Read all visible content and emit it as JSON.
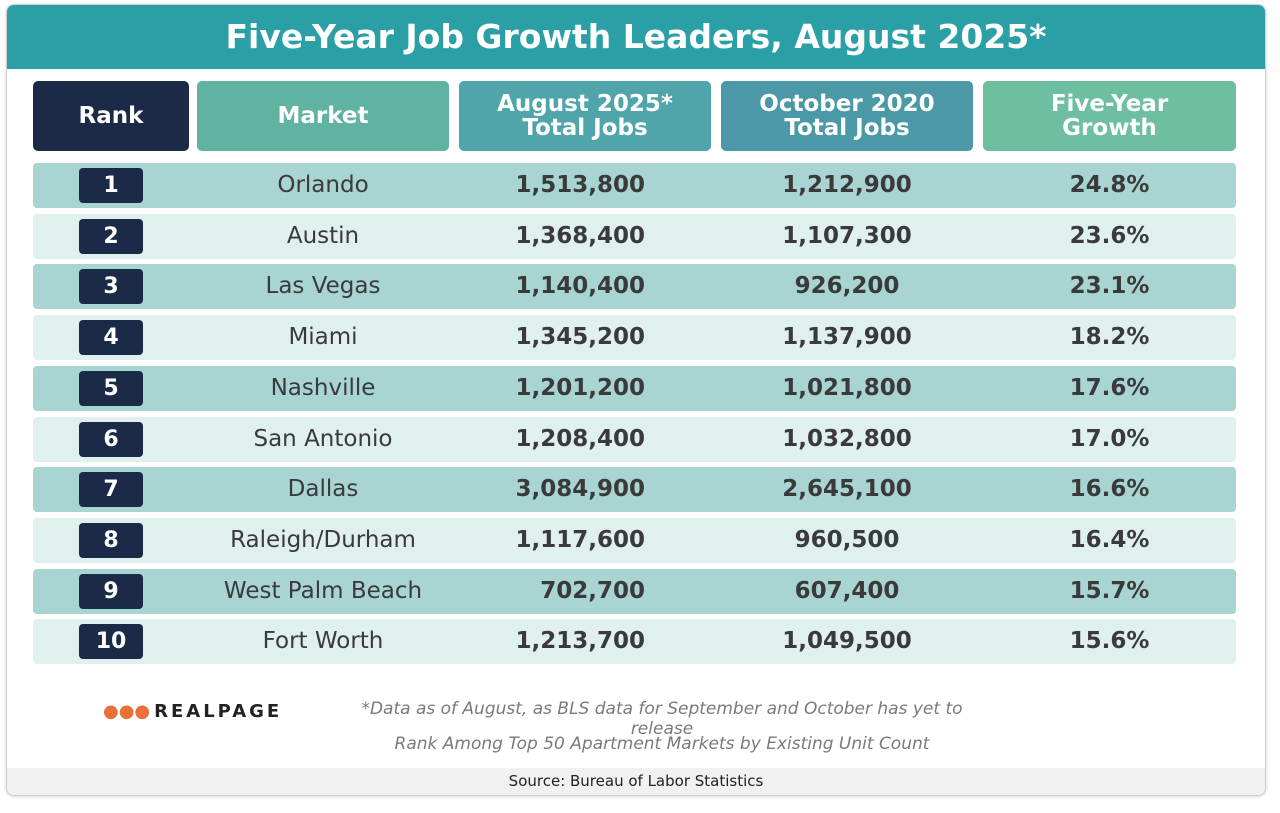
{
  "header": {
    "title": "Five-Year Job Growth Leaders, August 2025*"
  },
  "table": {
    "columns": [
      "Rank",
      "Market",
      "August 2025* Total Jobs",
      "October 2020 Total Jobs",
      "Five-Year Growth"
    ],
    "rows": [
      [
        "1",
        "Orlando",
        "1,513,800",
        "1,212,900",
        "24.8%"
      ],
      [
        "2",
        "Austin",
        "1,368,400",
        "1,107,300",
        "23.6%"
      ],
      [
        "3",
        "Las Vegas",
        "1,140,400",
        "926,200",
        "23.1%"
      ],
      [
        "4",
        "Miami",
        "1,345,200",
        "1,137,900",
        "18.2%"
      ],
      [
        "5",
        "Nashville",
        "1,201,200",
        "1,021,800",
        "17.6%"
      ],
      [
        "6",
        "San Antonio",
        "1,208,400",
        "1,032,800",
        "17.0%"
      ],
      [
        "7",
        "Dallas",
        "3,084,900",
        "2,645,100",
        "16.6%"
      ],
      [
        "8",
        "Raleigh/Durham",
        "1,117,600",
        "960,500",
        "16.4%"
      ],
      [
        "9",
        "West Palm Beach",
        "702,700",
        "607,400",
        "15.7%"
      ],
      [
        "10",
        "Fort Worth",
        "1,213,700",
        "1,049,500",
        "15.6%"
      ]
    ]
  },
  "footer": {
    "logo": "REALPAGE",
    "notes": [
      "*Data as of August, as BLS data for September and October has yet to release",
      "Rank Among Top 50 Apartment Markets by Existing Unit Count"
    ],
    "source": "Source: Bureau of Labor Statistics"
  }
}
